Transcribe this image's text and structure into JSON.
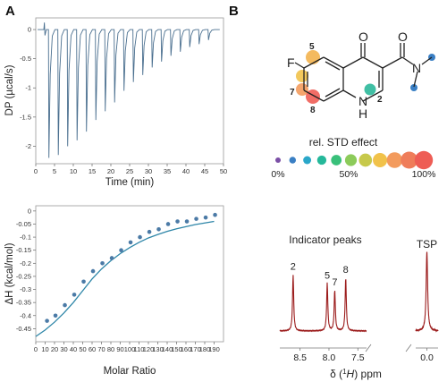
{
  "panels": {
    "a": "A",
    "b": "B"
  },
  "chart_data": [
    {
      "type": "line",
      "panel": "A",
      "description_type": "ITC thermogram",
      "xlabel": "Time (min)",
      "ylabel": "DP (µcal/s)",
      "xlim": [
        0,
        50
      ],
      "ylim": [
        -2.3,
        0.2
      ],
      "xticks": [
        0,
        5,
        10,
        15,
        20,
        25,
        30,
        35,
        40,
        45,
        50
      ],
      "yticks": [
        0,
        -0.5,
        -1,
        -1.5,
        -2
      ],
      "ytick_labels": [
        "0",
        "-0.5",
        "-1",
        "-1.5",
        "-2"
      ],
      "baseline": 0,
      "pretest_injection": {
        "time": 2.3,
        "up": 0.12,
        "down": -0.1
      },
      "injections": [
        {
          "time": 3.5,
          "peak": -2.2
        },
        {
          "time": 6.0,
          "peak": -2.15
        },
        {
          "time": 8.5,
          "peak": -2.0
        },
        {
          "time": 11.0,
          "peak": -1.9
        },
        {
          "time": 13.5,
          "peak": -1.75
        },
        {
          "time": 16.0,
          "peak": -1.55
        },
        {
          "time": 18.5,
          "peak": -1.4
        },
        {
          "time": 21.0,
          "peak": -1.25
        },
        {
          "time": 23.5,
          "peak": -1.05
        },
        {
          "time": 26.0,
          "peak": -0.9
        },
        {
          "time": 28.5,
          "peak": -0.78
        },
        {
          "time": 31.0,
          "peak": -0.65
        },
        {
          "time": 33.5,
          "peak": -0.55
        },
        {
          "time": 36.0,
          "peak": -0.45
        },
        {
          "time": 38.5,
          "peak": -0.38
        },
        {
          "time": 41.0,
          "peak": -0.3
        },
        {
          "time": 43.5,
          "peak": -0.25
        },
        {
          "time": 46.0,
          "peak": -0.18
        }
      ],
      "color": "#4a6f8f"
    },
    {
      "type": "scatter",
      "panel": "A",
      "description_type": "binding isotherm with fit",
      "xlabel": "Molar Ratio",
      "ylabel": "ΔH (kcal/mol)",
      "xlim": [
        0,
        200
      ],
      "ylim": [
        -0.5,
        0.02
      ],
      "xticks": [
        0,
        10,
        20,
        30,
        40,
        50,
        60,
        70,
        80,
        90,
        100,
        110,
        120,
        130,
        140,
        150,
        160,
        170,
        180,
        190
      ],
      "yticks": [
        0,
        -0.05,
        -0.1,
        -0.15,
        -0.2,
        -0.25,
        -0.3,
        -0.35,
        -0.4,
        -0.45
      ],
      "ytick_labels": [
        "0",
        "-0.05",
        "-0.1",
        "-0.15",
        "-0.2",
        "-0.25",
        "-0.3",
        "-0.35",
        "-0.4",
        "-0.45"
      ],
      "points": [
        [
          12,
          -0.42
        ],
        [
          21,
          -0.4
        ],
        [
          31,
          -0.36
        ],
        [
          41,
          -0.32
        ],
        [
          51,
          -0.27
        ],
        [
          61,
          -0.23
        ],
        [
          71,
          -0.2
        ],
        [
          81,
          -0.18
        ],
        [
          91,
          -0.15
        ],
        [
          101,
          -0.12
        ],
        [
          111,
          -0.1
        ],
        [
          121,
          -0.08
        ],
        [
          131,
          -0.07
        ],
        [
          141,
          -0.05
        ],
        [
          151,
          -0.04
        ],
        [
          161,
          -0.04
        ],
        [
          171,
          -0.03
        ],
        [
          181,
          -0.025
        ],
        [
          191,
          -0.015
        ]
      ],
      "fit": [
        [
          0,
          -0.48
        ],
        [
          10,
          -0.455
        ],
        [
          20,
          -0.425
        ],
        [
          30,
          -0.39
        ],
        [
          40,
          -0.35
        ],
        [
          50,
          -0.305
        ],
        [
          60,
          -0.26
        ],
        [
          70,
          -0.222
        ],
        [
          80,
          -0.19
        ],
        [
          90,
          -0.163
        ],
        [
          100,
          -0.14
        ],
        [
          110,
          -0.12
        ],
        [
          120,
          -0.103
        ],
        [
          130,
          -0.09
        ],
        [
          140,
          -0.078
        ],
        [
          150,
          -0.068
        ],
        [
          160,
          -0.06
        ],
        [
          170,
          -0.052
        ],
        [
          180,
          -0.046
        ],
        [
          190,
          -0.04
        ]
      ],
      "point_color": "#4b7aa6",
      "fit_color": "#2e86a8"
    },
    {
      "type": "line",
      "panel": "B",
      "description_type": "1H NMR spectrum",
      "xlabel": "δ (¹H) ppm",
      "xlabel_parts": {
        "pre": "δ (",
        "nucleus_sup": "1",
        "nucleus": "H",
        "post": ")  ppm"
      },
      "xticks": [
        8.5,
        8.0,
        7.5,
        0.0
      ],
      "xtick_labels": [
        "8.5",
        "8.0",
        "7.5",
        "0.0"
      ],
      "segments": [
        {
          "xlim": [
            8.85,
            7.35
          ]
        },
        {
          "xlim": [
            0.15,
            -0.15
          ]
        }
      ],
      "peaks": [
        {
          "label": "2",
          "ppm": 8.62,
          "height": 0.72
        },
        {
          "label": "5",
          "ppm": 8.03,
          "height": 0.61
        },
        {
          "label": "7",
          "ppm": 7.9,
          "height": 0.52
        },
        {
          "label": "8",
          "ppm": 7.71,
          "height": 0.68
        },
        {
          "label": "TSP",
          "ppm": 0.0,
          "height": 1.0
        }
      ],
      "annotation": "Indicator peaks",
      "color": "#9b1b1b"
    }
  ],
  "structure": {
    "atoms": {
      "F": "F",
      "O_ketone": "O",
      "O_amide": "O",
      "N_amide": "N",
      "NH": "N",
      "H": "H"
    },
    "position_labels": [
      "5",
      "7",
      "8",
      "2"
    ]
  },
  "legend": {
    "title": "rel. STD effect",
    "colors": [
      "#7b4fa6",
      "#3a7fc4",
      "#2aa7c9",
      "#25b89a",
      "#39c07a",
      "#8ccb5a",
      "#c7c94b",
      "#f1c24a",
      "#f39b5d",
      "#ef7d5a",
      "#ee5d55"
    ],
    "labels": [
      "0%",
      "50%",
      "100%"
    ]
  }
}
